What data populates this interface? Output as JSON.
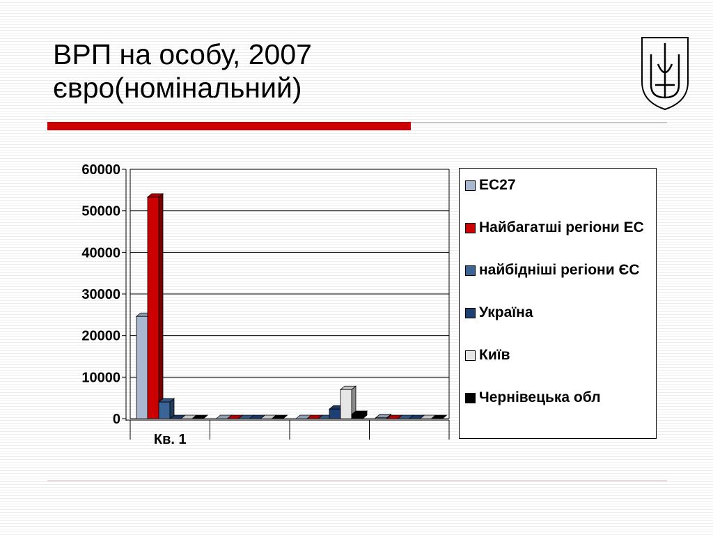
{
  "chart_data": {
    "type": "bar",
    "title": "ВРП на особу, 2007",
    "subtitle": "євро(номінальний)",
    "categories": [
      "Кв. 1",
      null,
      null,
      null
    ],
    "series": [
      {
        "name": "ЕС27",
        "color": "#a9b8cf",
        "values": [
          24600,
          0,
          0,
          200
        ]
      },
      {
        "name": "Найбагатші регіони ЕС",
        "color": "#cc0000",
        "values": [
          53300,
          0,
          0,
          0
        ]
      },
      {
        "name": "найбідніші регіони ЄС",
        "color": "#3a6496",
        "values": [
          4000,
          0,
          0,
          0
        ]
      },
      {
        "name": "Україна",
        "color": "#1d3f73",
        "values": [
          0,
          0,
          2300,
          0
        ]
      },
      {
        "name": "Київ",
        "color": "#e6e6e6",
        "values": [
          0,
          0,
          7000,
          0
        ]
      },
      {
        "name": "Чернівецька обл",
        "color": "#000000",
        "values": [
          0,
          0,
          1000,
          0
        ]
      }
    ],
    "ylim": [
      0,
      60000
    ],
    "yticks": [
      0,
      10000,
      20000,
      30000,
      40000,
      50000,
      60000
    ],
    "grid": true,
    "legend": "right"
  }
}
